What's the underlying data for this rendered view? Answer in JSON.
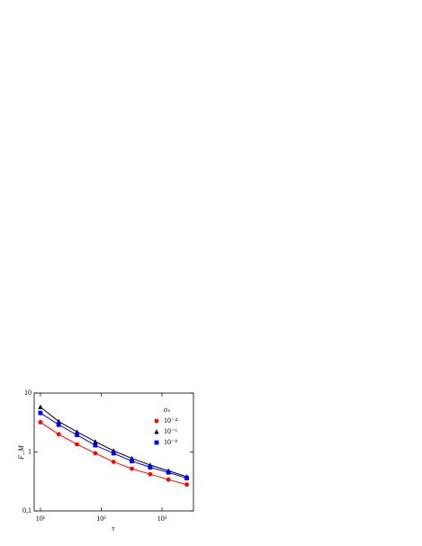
{
  "chart_data": {
    "type": "scatter",
    "x_label": "τ",
    "y_label": "F_M",
    "x": [
      10,
      20,
      40,
      80,
      160,
      320,
      640,
      1280,
      2560
    ],
    "series": [
      {
        "name": "10⁻⁴",
        "color": "#ff0000",
        "marker": "circle",
        "values": [
          3.2,
          2.0,
          1.35,
          0.95,
          0.68,
          0.52,
          0.42,
          0.34,
          0.28
        ]
      },
      {
        "name": "10⁻⁶",
        "color": "#000000",
        "marker": "triangle",
        "values": [
          5.8,
          3.3,
          2.2,
          1.5,
          1.05,
          0.78,
          0.6,
          0.48,
          0.38
        ]
      },
      {
        "name": "10⁻⁸",
        "color": "#0000ff",
        "marker": "square",
        "values": [
          4.6,
          2.9,
          1.95,
          1.3,
          0.95,
          0.7,
          0.55,
          0.45,
          0.36
        ]
      }
    ],
    "legend_title": "σₛ",
    "legend": "upper right",
    "xlim": [
      7.9,
      3300
    ],
    "ylim": [
      0.1,
      10
    ],
    "xscale": "log",
    "yscale": "log",
    "xticks": [
      {
        "value": 10,
        "label": "10¹"
      },
      {
        "value": 100,
        "label": "10²"
      },
      {
        "value": 1000,
        "label": "10³"
      }
    ],
    "yticks": [
      {
        "value": 0.1,
        "label": "0,1"
      },
      {
        "value": 1,
        "label": "1"
      },
      {
        "value": 10,
        "label": "10"
      }
    ]
  }
}
